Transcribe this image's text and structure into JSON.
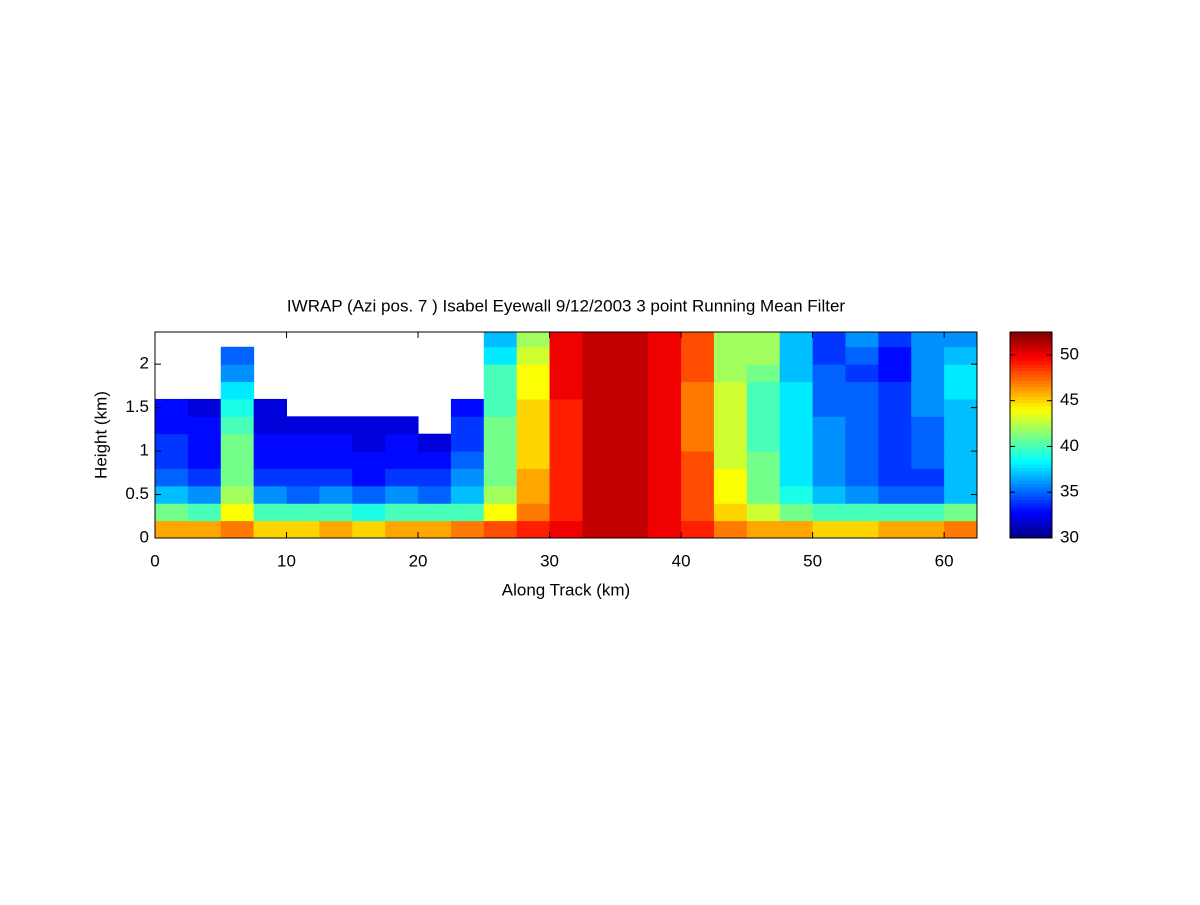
{
  "chart_data": {
    "type": "heatmap",
    "title": "IWRAP (Azi pos. 7 ) Isabel Eyewall 9/12/2003 3 point Running Mean Filter",
    "xlabel": "Along Track (km)",
    "ylabel": "Height (km)",
    "xlim": [
      0,
      62.5
    ],
    "ylim": [
      0,
      2.37
    ],
    "xticks": [
      0,
      10,
      20,
      30,
      40,
      50,
      60
    ],
    "yticks": [
      0,
      0.5,
      1,
      1.5,
      2
    ],
    "clim": [
      30,
      52.5
    ],
    "cticks": [
      30,
      35,
      40,
      45,
      50
    ],
    "colormap": "jet",
    "x": [
      1.25,
      3.75,
      6.25,
      8.75,
      11.25,
      13.75,
      16.25,
      18.75,
      21.25,
      23.75,
      26.25,
      28.75,
      31.25,
      33.75,
      36.25,
      38.75,
      41.25,
      43.75,
      46.25,
      48.75,
      51.25,
      53.75,
      56.25,
      58.75,
      61.25
    ],
    "y": [
      0.1,
      0.3,
      0.5,
      0.7,
      0.9,
      1.1,
      1.3,
      1.5,
      1.7,
      1.9,
      2.1,
      2.3
    ],
    "z": [
      [
        46,
        46,
        47,
        45,
        45,
        46,
        45,
        46,
        46,
        47,
        48,
        49,
        50,
        51,
        51,
        50,
        49,
        47,
        46,
        46,
        45,
        45,
        46,
        46,
        47
      ],
      [
        41,
        40,
        44,
        40,
        40,
        40,
        39,
        40,
        40,
        40,
        44,
        47,
        49,
        51,
        51,
        50,
        48,
        45,
        43,
        41,
        40,
        40,
        40,
        40,
        41
      ],
      [
        37,
        36,
        42,
        36,
        35,
        36,
        35,
        36,
        35,
        37,
        42,
        46,
        49,
        51,
        51,
        50,
        48,
        44,
        41,
        39,
        37,
        36,
        35,
        35,
        37
      ],
      [
        35,
        34,
        41,
        34,
        34,
        34,
        33,
        34,
        34,
        36,
        41,
        46,
        49,
        51,
        51,
        50,
        48,
        44,
        41,
        38,
        36,
        35,
        34,
        34,
        37
      ],
      [
        34,
        33,
        41,
        33,
        33,
        33,
        33,
        33,
        33,
        35,
        41,
        45,
        49,
        51,
        51,
        50,
        48,
        43,
        41,
        38,
        36,
        35,
        34,
        35,
        37
      ],
      [
        34,
        33,
        41,
        33,
        33,
        33,
        32,
        33,
        32,
        34,
        41,
        45,
        49,
        51,
        51,
        50,
        47,
        43,
        40,
        38,
        36,
        35,
        34,
        35,
        37
      ],
      [
        33,
        33,
        40,
        32,
        32,
        32,
        32,
        32,
        null,
        34,
        41,
        45,
        49,
        51,
        51,
        50,
        47,
        43,
        40,
        38,
        36,
        35,
        34,
        35,
        37
      ],
      [
        33,
        32,
        39,
        32,
        null,
        null,
        null,
        null,
        null,
        33,
        40,
        45,
        49,
        51,
        51,
        50,
        47,
        43,
        40,
        38,
        35,
        35,
        34,
        36,
        37
      ],
      [
        null,
        null,
        38,
        null,
        null,
        null,
        null,
        null,
        null,
        null,
        40,
        44,
        50,
        51,
        51,
        50,
        47,
        43,
        40,
        38,
        35,
        35,
        34,
        36,
        38
      ],
      [
        null,
        null,
        36,
        null,
        null,
        null,
        null,
        null,
        null,
        null,
        40,
        44,
        50,
        51,
        51,
        50,
        48,
        42,
        41,
        37,
        35,
        34,
        33,
        36,
        38
      ],
      [
        null,
        null,
        35,
        null,
        null,
        null,
        null,
        null,
        null,
        null,
        38,
        43,
        50,
        51,
        51,
        50,
        48,
        42,
        42,
        37,
        34,
        35,
        33,
        36,
        37
      ],
      [
        null,
        null,
        null,
        null,
        null,
        null,
        null,
        null,
        null,
        null,
        37,
        42,
        50,
        51,
        51,
        50,
        48,
        42,
        42,
        37,
        34,
        36,
        34,
        36,
        36
      ]
    ]
  }
}
